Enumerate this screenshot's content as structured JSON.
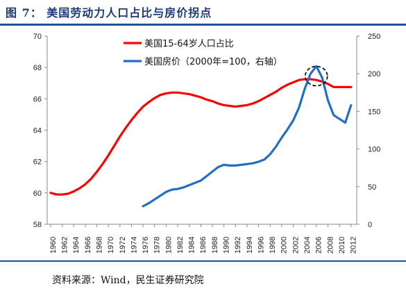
{
  "header": {
    "title": "图 7： 美国劳动力人口占比与房价拐点"
  },
  "footer": {
    "source": "资料来源：Wind，民生证券研究院"
  },
  "colors": {
    "series1": "#ff0000",
    "series2": "#1f6fc5",
    "rule": "#1f4e9b",
    "title": "#1a3a78"
  },
  "chart_data": {
    "type": "line",
    "x_ticks": [
      "1960",
      "1962",
      "1964",
      "1966",
      "1968",
      "1970",
      "1972",
      "1974",
      "1976",
      "1978",
      "1980",
      "1982",
      "1984",
      "1986",
      "1988",
      "1990",
      "1992",
      "1994",
      "1996",
      "1998",
      "2000",
      "2002",
      "2004",
      "2006",
      "2008",
      "2010",
      "2012"
    ],
    "y_left": {
      "min": 58,
      "max": 70,
      "ticks": [
        "58",
        "60",
        "62",
        "64",
        "66",
        "68",
        "70"
      ]
    },
    "y_right": {
      "min": 0,
      "max": 250,
      "ticks": [
        "0",
        "50",
        "100",
        "150",
        "200",
        "250"
      ]
    },
    "series": [
      {
        "name": "美国15-64岁人口占比",
        "axis": "left",
        "x": [
          1960,
          1961,
          1962,
          1963,
          1964,
          1965,
          1966,
          1967,
          1968,
          1969,
          1970,
          1971,
          1972,
          1973,
          1974,
          1975,
          1976,
          1977,
          1978,
          1979,
          1980,
          1981,
          1982,
          1983,
          1984,
          1985,
          1986,
          1987,
          1988,
          1989,
          1990,
          1991,
          1992,
          1993,
          1994,
          1995,
          1996,
          1997,
          1998,
          1999,
          2000,
          2001,
          2002,
          2003,
          2004,
          2005,
          2006,
          2007,
          2008,
          2009,
          2010,
          2011,
          2012
        ],
        "values": [
          60.0,
          59.9,
          59.9,
          59.95,
          60.1,
          60.3,
          60.55,
          60.9,
          61.35,
          61.85,
          62.4,
          63.0,
          63.6,
          64.15,
          64.65,
          65.1,
          65.5,
          65.8,
          66.05,
          66.25,
          66.35,
          66.4,
          66.4,
          66.35,
          66.3,
          66.2,
          66.1,
          65.95,
          65.85,
          65.7,
          65.6,
          65.55,
          65.5,
          65.55,
          65.6,
          65.7,
          65.85,
          66.05,
          66.25,
          66.45,
          66.7,
          66.9,
          67.05,
          67.2,
          67.25,
          67.25,
          67.2,
          67.1,
          66.95,
          66.75,
          66.75,
          66.75,
          66.75
        ]
      },
      {
        "name": "美国房价（2000年=100，右轴）",
        "axis": "right",
        "x": [
          1976,
          1977,
          1978,
          1979,
          1980,
          1981,
          1982,
          1983,
          1984,
          1985,
          1986,
          1987,
          1988,
          1989,
          1990,
          1991,
          1992,
          1993,
          1994,
          1995,
          1996,
          1997,
          1998,
          1999,
          2000,
          2001,
          2002,
          2003,
          2004,
          2005,
          2006,
          2007,
          2008,
          2009,
          2010,
          2011,
          2012
        ],
        "values": [
          24,
          28,
          33,
          38,
          43,
          46,
          47,
          49,
          52,
          55,
          58,
          64,
          70,
          76,
          79,
          78,
          78,
          79,
          80,
          81,
          83,
          86,
          93,
          103,
          115,
          126,
          138,
          155,
          180,
          200,
          210,
          195,
          165,
          145,
          140,
          135,
          158
        ]
      }
    ],
    "annotations": [
      {
        "shape": "dashed-ellipse",
        "around": "2006 peak"
      }
    ]
  }
}
